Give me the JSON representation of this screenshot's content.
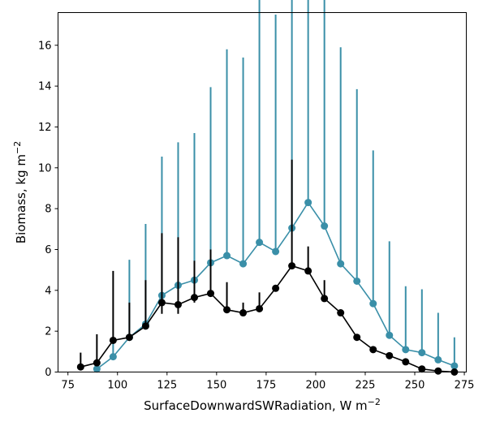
{
  "chart_data": {
    "type": "line",
    "xlabel": "SurfaceDownwardSWRadiation,  W m",
    "xlabel_sup": "−2",
    "ylabel": "Biomass,  kg m",
    "ylabel_sup": "−2",
    "xlim": [
      70,
      276
    ],
    "ylim": [
      0,
      17.6
    ],
    "xticks": [
      75,
      100,
      125,
      150,
      175,
      200,
      225,
      250,
      275
    ],
    "yticks": [
      0,
      2,
      4,
      6,
      8,
      10,
      12,
      14,
      16
    ],
    "grid": false,
    "series": [
      {
        "color": "#3a8fa8",
        "x": [
          89.6,
          97.8,
          106.0,
          114.2,
          122.4,
          130.6,
          138.8,
          147.0,
          155.2,
          163.4,
          171.6,
          179.8,
          188.0,
          196.2,
          204.4,
          212.6,
          220.8,
          229.0,
          237.2,
          245.4,
          253.6,
          261.8,
          270.0
        ],
        "y": [
          0.15,
          0.75,
          1.7,
          2.35,
          3.75,
          4.25,
          4.5,
          5.35,
          5.7,
          5.3,
          6.35,
          5.9,
          7.05,
          8.3,
          7.15,
          5.3,
          4.45,
          3.35,
          1.8,
          1.1,
          0.95,
          0.6,
          0.3
        ],
        "err_low": [
          0.0,
          0.0,
          0.0,
          0.0,
          0.0,
          0.0,
          0.0,
          0.0,
          0.0,
          0.0,
          0.0,
          0.0,
          0.0,
          0.0,
          0.0,
          0.0,
          0.0,
          0.0,
          0.0,
          0.0,
          0.0,
          0.0,
          0.0
        ],
        "err_high": [
          0.5,
          0.8,
          3.8,
          4.9,
          6.8,
          7.0,
          7.2,
          8.6,
          10.1,
          10.1,
          12.0,
          11.6,
          13.9,
          15.4,
          13.4,
          10.6,
          9.4,
          7.5,
          4.6,
          3.1,
          3.1,
          2.3,
          1.4
        ]
      },
      {
        "color": "#000000",
        "x": [
          81.4,
          89.6,
          97.8,
          106.0,
          114.2,
          122.4,
          130.6,
          138.8,
          147.0,
          155.2,
          163.4,
          171.6,
          179.8,
          188.0,
          196.2,
          204.4,
          212.6,
          220.8,
          229.0,
          237.2,
          245.4,
          253.6,
          261.8,
          270.0
        ],
        "y": [
          0.25,
          0.45,
          1.55,
          1.7,
          2.25,
          3.4,
          3.3,
          3.65,
          3.85,
          3.05,
          2.9,
          3.1,
          4.1,
          5.2,
          4.95,
          3.6,
          2.9,
          1.7,
          1.1,
          0.8,
          0.5,
          0.15,
          0.05,
          0.0
        ],
        "err_low": [
          0.0,
          0.0,
          0.0,
          0.0,
          0.0,
          0.55,
          0.45,
          0.25,
          0.1,
          0.05,
          0.05,
          0.0,
          0.0,
          0.05,
          0.0,
          0.0,
          0.0,
          0.0,
          0.0,
          0.0,
          0.0,
          0.0,
          0.0,
          0.0
        ],
        "err_high": [
          0.7,
          1.4,
          3.4,
          1.7,
          2.25,
          3.4,
          3.3,
          1.8,
          2.15,
          1.35,
          0.5,
          0.8,
          0.05,
          5.2,
          1.2,
          0.9,
          0.0,
          0.0,
          0.0,
          0.0,
          0.0,
          0.0,
          0.0,
          0.0
        ]
      }
    ]
  }
}
